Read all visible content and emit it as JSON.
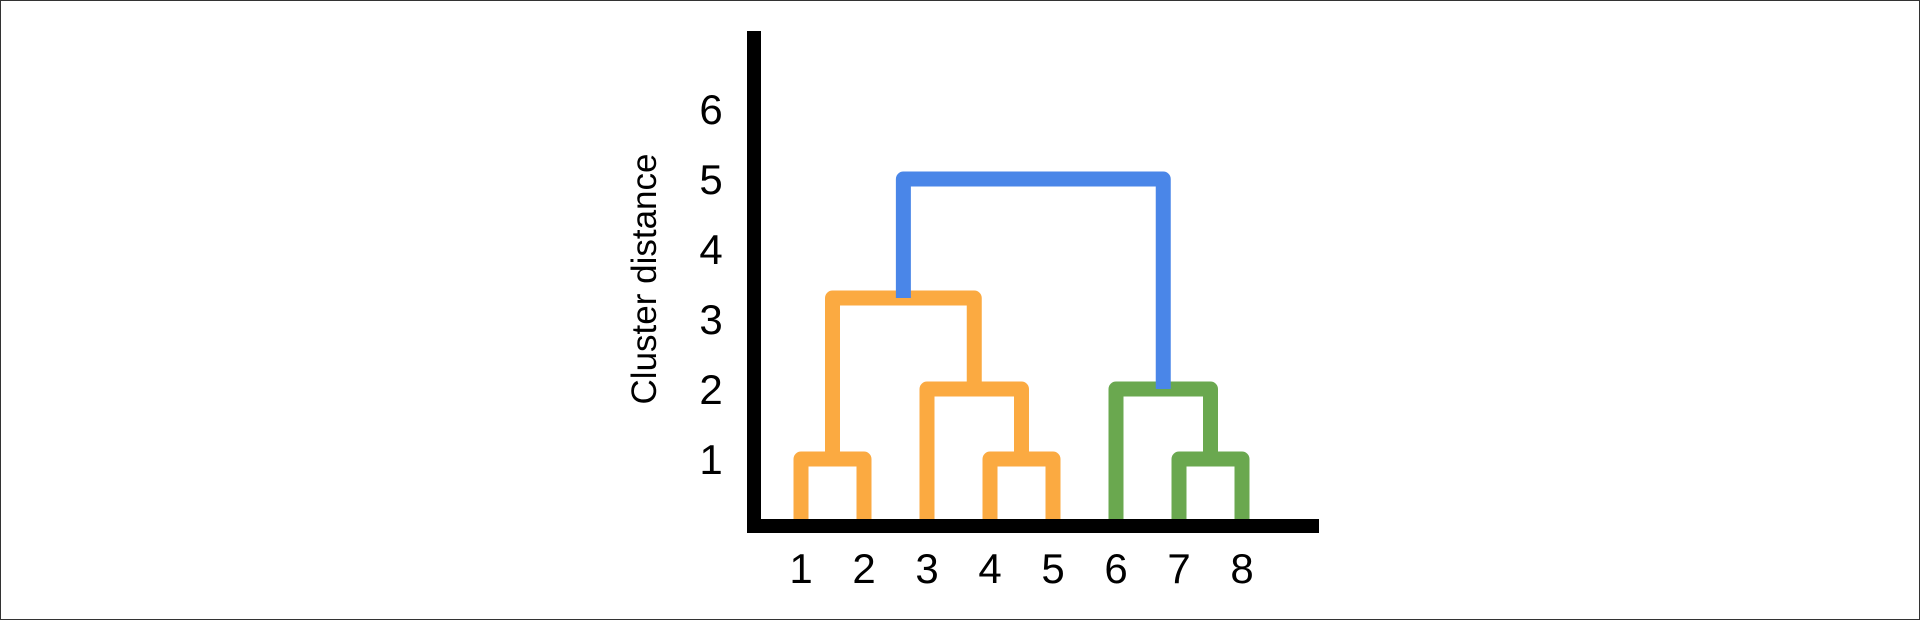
{
  "chart_data": {
    "type": "dendrogram",
    "ylabel": "Cluster distance",
    "xlabel": "",
    "leaves": [
      "1",
      "2",
      "3",
      "4",
      "5",
      "6",
      "7",
      "8"
    ],
    "yticks": [
      "1",
      "2",
      "3",
      "4",
      "5",
      "6"
    ],
    "ylim": [
      0,
      7
    ],
    "merges": [
      {
        "name": "merge-1-2",
        "left": "1",
        "right": "2",
        "height": 1.0,
        "color": "#FBAA41"
      },
      {
        "name": "merge-4-5",
        "left": "4",
        "right": "5",
        "height": 1.0,
        "color": "#FBAA41"
      },
      {
        "name": "merge-7-8",
        "left": "7",
        "right": "8",
        "height": 1.0,
        "color": "#6AA84F"
      },
      {
        "name": "merge-3-45",
        "left": "3",
        "right": "merge-4-5",
        "height": 2.0,
        "color": "#FBAA41"
      },
      {
        "name": "merge-6-78",
        "left": "6",
        "right": "merge-7-8",
        "height": 2.0,
        "color": "#6AA84F"
      },
      {
        "name": "merge-12-345",
        "left": "merge-1-2",
        "right": "merge-3-45",
        "height": 3.3,
        "color": "#FBAA41"
      },
      {
        "name": "merge-root",
        "left": "merge-12-345",
        "right": "merge-6-78",
        "height": 5.0,
        "color": "#4A86E8"
      }
    ],
    "colors": {
      "axis": "#000000",
      "orange": "#FBAA41",
      "green": "#6AA84F",
      "blue": "#4A86E8"
    }
  }
}
